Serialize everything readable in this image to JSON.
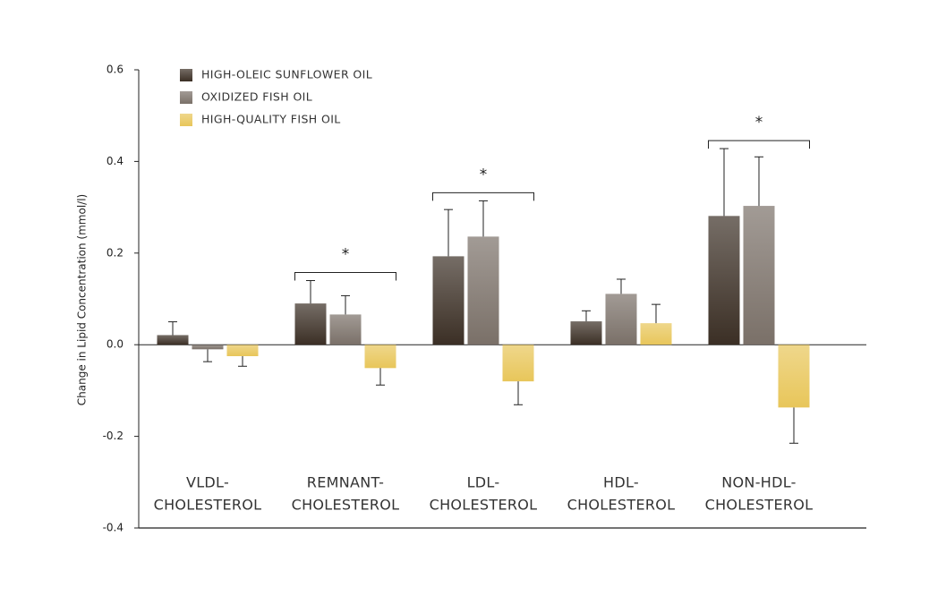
{
  "chart_data": {
    "type": "bar",
    "y_label": "Change in Lipid Concentration (mmol/l)",
    "categories": [
      [
        "VLDL-",
        "CHOLESTEROL"
      ],
      [
        "REMNANT-",
        "CHOLESTEROL"
      ],
      [
        "LDL-",
        "CHOLESTEROL"
      ],
      [
        "HDL-",
        "CHOLESTEROL"
      ],
      [
        "NON-HDL-",
        "CHOLESTEROL"
      ]
    ],
    "series": [
      {
        "name": "HIGH-OLEIC SUNFLOWER OIL",
        "color": "#3b2f25",
        "values": [
          0.021,
          0.09,
          0.193,
          0.051,
          0.281
        ],
        "errors": [
          0.029,
          0.05,
          0.102,
          0.023,
          0.147
        ]
      },
      {
        "name": "OXIDIZED FISH OIL",
        "color": "#7a7068",
        "values": [
          -0.01,
          0.066,
          0.236,
          0.111,
          0.303
        ],
        "errors": [
          0.027,
          0.041,
          0.078,
          0.032,
          0.107
        ]
      },
      {
        "name": "HIGH-QUALITY FISH OIL",
        "color": "#e8c65a",
        "values": [
          -0.025,
          -0.051,
          -0.08,
          0.047,
          -0.137
        ],
        "errors": [
          0.022,
          0.037,
          0.051,
          0.041,
          0.078
        ]
      }
    ],
    "significance": [
      null,
      "*",
      "*",
      null,
      "*"
    ],
    "ylim": [
      -0.4,
      0.6
    ],
    "yticks": [
      {
        "value": 0.6,
        "label": "0.6"
      },
      {
        "value": 0.4,
        "label": "0.4"
      },
      {
        "value": 0.2,
        "label": "0.2"
      },
      {
        "value": 0,
        "label": "0.0"
      },
      {
        "value": -0.2,
        "label": "-0.2"
      },
      {
        "value": -0.4,
        "label": "-0.4"
      }
    ]
  }
}
